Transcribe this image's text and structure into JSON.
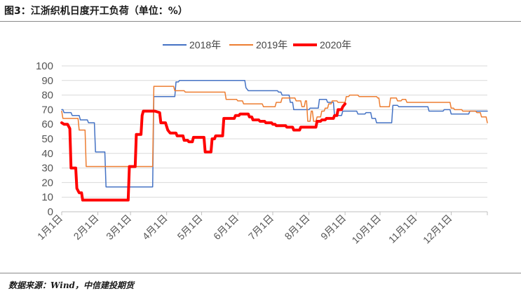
{
  "header": {
    "title": "图3：江浙织机日度开工负荷（单位：%）"
  },
  "footer": {
    "source": "数据来源：Wind，中信建投期货"
  },
  "chart_data": {
    "type": "line",
    "title": "",
    "xlabel": "",
    "ylabel": "",
    "ylim": [
      0,
      100
    ],
    "yticks": [
      0,
      10,
      20,
      30,
      40,
      50,
      60,
      70,
      80,
      90,
      100
    ],
    "xlim": [
      0,
      365
    ],
    "x_ticks": [
      {
        "label": "1月1日",
        "day": 0
      },
      {
        "label": "2月1日",
        "day": 31
      },
      {
        "label": "3月1日",
        "day": 59
      },
      {
        "label": "4月1日",
        "day": 90
      },
      {
        "label": "5月1日",
        "day": 120
      },
      {
        "label": "6月1日",
        "day": 151
      },
      {
        "label": "7月1日",
        "day": 181
      },
      {
        "label": "8月1日",
        "day": 212
      },
      {
        "label": "9月1日",
        "day": 243
      },
      {
        "label": "10月1日",
        "day": 273
      },
      {
        "label": "11月1日",
        "day": 304
      },
      {
        "label": "12月1日",
        "day": 334
      }
    ],
    "grid": true,
    "legend_position": "top-center",
    "series": [
      {
        "name": "2018年",
        "color": "#4472C4",
        "width": 1.5,
        "points": [
          [
            0,
            70
          ],
          [
            1,
            70
          ],
          [
            2,
            68
          ],
          [
            8,
            68
          ],
          [
            9,
            66
          ],
          [
            15,
            66
          ],
          [
            16,
            63
          ],
          [
            22,
            63
          ],
          [
            23,
            61
          ],
          [
            28,
            61
          ],
          [
            29,
            41
          ],
          [
            37,
            41
          ],
          [
            38,
            17
          ],
          [
            78,
            17
          ],
          [
            79,
            79
          ],
          [
            97,
            79
          ],
          [
            98,
            89
          ],
          [
            100,
            89
          ],
          [
            101,
            90
          ],
          [
            157,
            90
          ],
          [
            158,
            85
          ],
          [
            160,
            83
          ],
          [
            185,
            83
          ],
          [
            186,
            82
          ],
          [
            188,
            82
          ],
          [
            189,
            80
          ],
          [
            195,
            80
          ],
          [
            196,
            75
          ],
          [
            198,
            75
          ],
          [
            199,
            70
          ],
          [
            212,
            70
          ],
          [
            213,
            71
          ],
          [
            220,
            71
          ],
          [
            221,
            77
          ],
          [
            227,
            77
          ],
          [
            228,
            75
          ],
          [
            233,
            75
          ],
          [
            234,
            66
          ],
          [
            240,
            66
          ],
          [
            241,
            69
          ],
          [
            253,
            69
          ],
          [
            254,
            67
          ],
          [
            260,
            67
          ],
          [
            261,
            68
          ],
          [
            265,
            68
          ],
          [
            266,
            64
          ],
          [
            269,
            64
          ],
          [
            270,
            61
          ],
          [
            283,
            61
          ],
          [
            284,
            73
          ],
          [
            288,
            73
          ],
          [
            289,
            72
          ],
          [
            314,
            72
          ],
          [
            315,
            69
          ],
          [
            327,
            69
          ],
          [
            328,
            70
          ],
          [
            333,
            70
          ],
          [
            334,
            67
          ],
          [
            349,
            67
          ],
          [
            350,
            69
          ],
          [
            365,
            69
          ]
        ]
      },
      {
        "name": "2019年",
        "color": "#ED7D31",
        "width": 1.5,
        "points": [
          [
            0,
            69
          ],
          [
            1,
            64
          ],
          [
            14,
            64
          ],
          [
            15,
            56
          ],
          [
            20,
            56
          ],
          [
            21,
            31
          ],
          [
            78,
            31
          ],
          [
            79,
            86
          ],
          [
            96,
            86
          ],
          [
            97,
            83
          ],
          [
            105,
            83
          ],
          [
            106,
            82
          ],
          [
            140,
            82
          ],
          [
            141,
            77
          ],
          [
            150,
            77
          ],
          [
            151,
            76
          ],
          [
            155,
            76
          ],
          [
            156,
            74
          ],
          [
            172,
            74
          ],
          [
            173,
            72
          ],
          [
            183,
            72
          ],
          [
            184,
            75
          ],
          [
            188,
            75
          ],
          [
            189,
            78
          ],
          [
            200,
            78
          ],
          [
            201,
            76
          ],
          [
            205,
            76
          ],
          [
            206,
            72
          ],
          [
            208,
            72
          ],
          [
            209,
            76
          ],
          [
            210,
            76
          ],
          [
            211,
            62
          ],
          [
            213,
            62
          ],
          [
            214,
            69
          ],
          [
            215,
            69
          ],
          [
            216,
            62
          ],
          [
            218,
            62
          ],
          [
            219,
            65
          ],
          [
            222,
            65
          ],
          [
            223,
            69
          ],
          [
            225,
            69
          ],
          [
            226,
            71
          ],
          [
            228,
            71
          ],
          [
            229,
            74
          ],
          [
            231,
            74
          ],
          [
            232,
            76
          ],
          [
            236,
            76
          ],
          [
            237,
            75
          ],
          [
            243,
            75
          ],
          [
            244,
            79
          ],
          [
            246,
            79
          ],
          [
            247,
            80
          ],
          [
            254,
            80
          ],
          [
            255,
            79
          ],
          [
            270,
            79
          ],
          [
            271,
            78
          ],
          [
            272,
            78
          ],
          [
            273,
            72
          ],
          [
            281,
            72
          ],
          [
            282,
            78
          ],
          [
            287,
            78
          ],
          [
            288,
            76
          ],
          [
            291,
            76
          ],
          [
            292,
            77
          ],
          [
            295,
            77
          ],
          [
            296,
            75
          ],
          [
            333,
            75
          ],
          [
            334,
            71
          ],
          [
            336,
            71
          ],
          [
            337,
            70
          ],
          [
            343,
            70
          ],
          [
            344,
            69
          ],
          [
            355,
            69
          ],
          [
            356,
            68
          ],
          [
            359,
            68
          ],
          [
            360,
            65
          ],
          [
            364,
            65
          ],
          [
            365,
            61
          ]
        ]
      },
      {
        "name": "2020年",
        "color": "#FF0000",
        "width": 4,
        "points": [
          [
            0,
            61
          ],
          [
            2,
            60
          ],
          [
            5,
            60
          ],
          [
            7,
            57
          ],
          [
            8,
            30
          ],
          [
            12,
            30
          ],
          [
            13,
            16
          ],
          [
            15,
            13
          ],
          [
            17,
            13
          ],
          [
            18,
            8
          ],
          [
            57,
            8
          ],
          [
            58,
            31
          ],
          [
            63,
            31
          ],
          [
            64,
            53
          ],
          [
            68,
            53
          ],
          [
            69,
            66
          ],
          [
            70,
            69
          ],
          [
            80,
            69
          ],
          [
            84,
            68
          ],
          [
            85,
            61
          ],
          [
            89,
            61
          ],
          [
            91,
            56
          ],
          [
            93,
            54
          ],
          [
            98,
            54
          ],
          [
            99,
            52
          ],
          [
            104,
            52
          ],
          [
            105,
            49
          ],
          [
            108,
            49
          ],
          [
            109,
            48
          ],
          [
            112,
            48
          ],
          [
            113,
            51
          ],
          [
            122,
            51
          ],
          [
            123,
            41
          ],
          [
            128,
            41
          ],
          [
            129,
            50
          ],
          [
            131,
            50
          ],
          [
            132,
            52
          ],
          [
            138,
            52
          ],
          [
            139,
            64
          ],
          [
            148,
            64
          ],
          [
            149,
            66
          ],
          [
            152,
            66
          ],
          [
            153,
            67
          ],
          [
            160,
            67
          ],
          [
            161,
            65
          ],
          [
            163,
            65
          ],
          [
            164,
            63
          ],
          [
            169,
            63
          ],
          [
            170,
            62
          ],
          [
            174,
            62
          ],
          [
            175,
            61
          ],
          [
            180,
            61
          ],
          [
            181,
            60
          ],
          [
            183,
            60
          ],
          [
            184,
            59
          ],
          [
            192,
            59
          ],
          [
            193,
            58
          ],
          [
            198,
            58
          ],
          [
            199,
            56
          ],
          [
            204,
            56
          ],
          [
            205,
            58
          ],
          [
            218,
            58
          ],
          [
            219,
            62
          ],
          [
            222,
            62
          ],
          [
            223,
            63
          ],
          [
            226,
            63
          ],
          [
            227,
            64
          ],
          [
            233,
            64
          ],
          [
            234,
            66
          ],
          [
            236,
            66
          ],
          [
            237,
            70
          ],
          [
            240,
            70
          ],
          [
            241,
            72
          ],
          [
            243,
            74
          ]
        ]
      }
    ]
  }
}
